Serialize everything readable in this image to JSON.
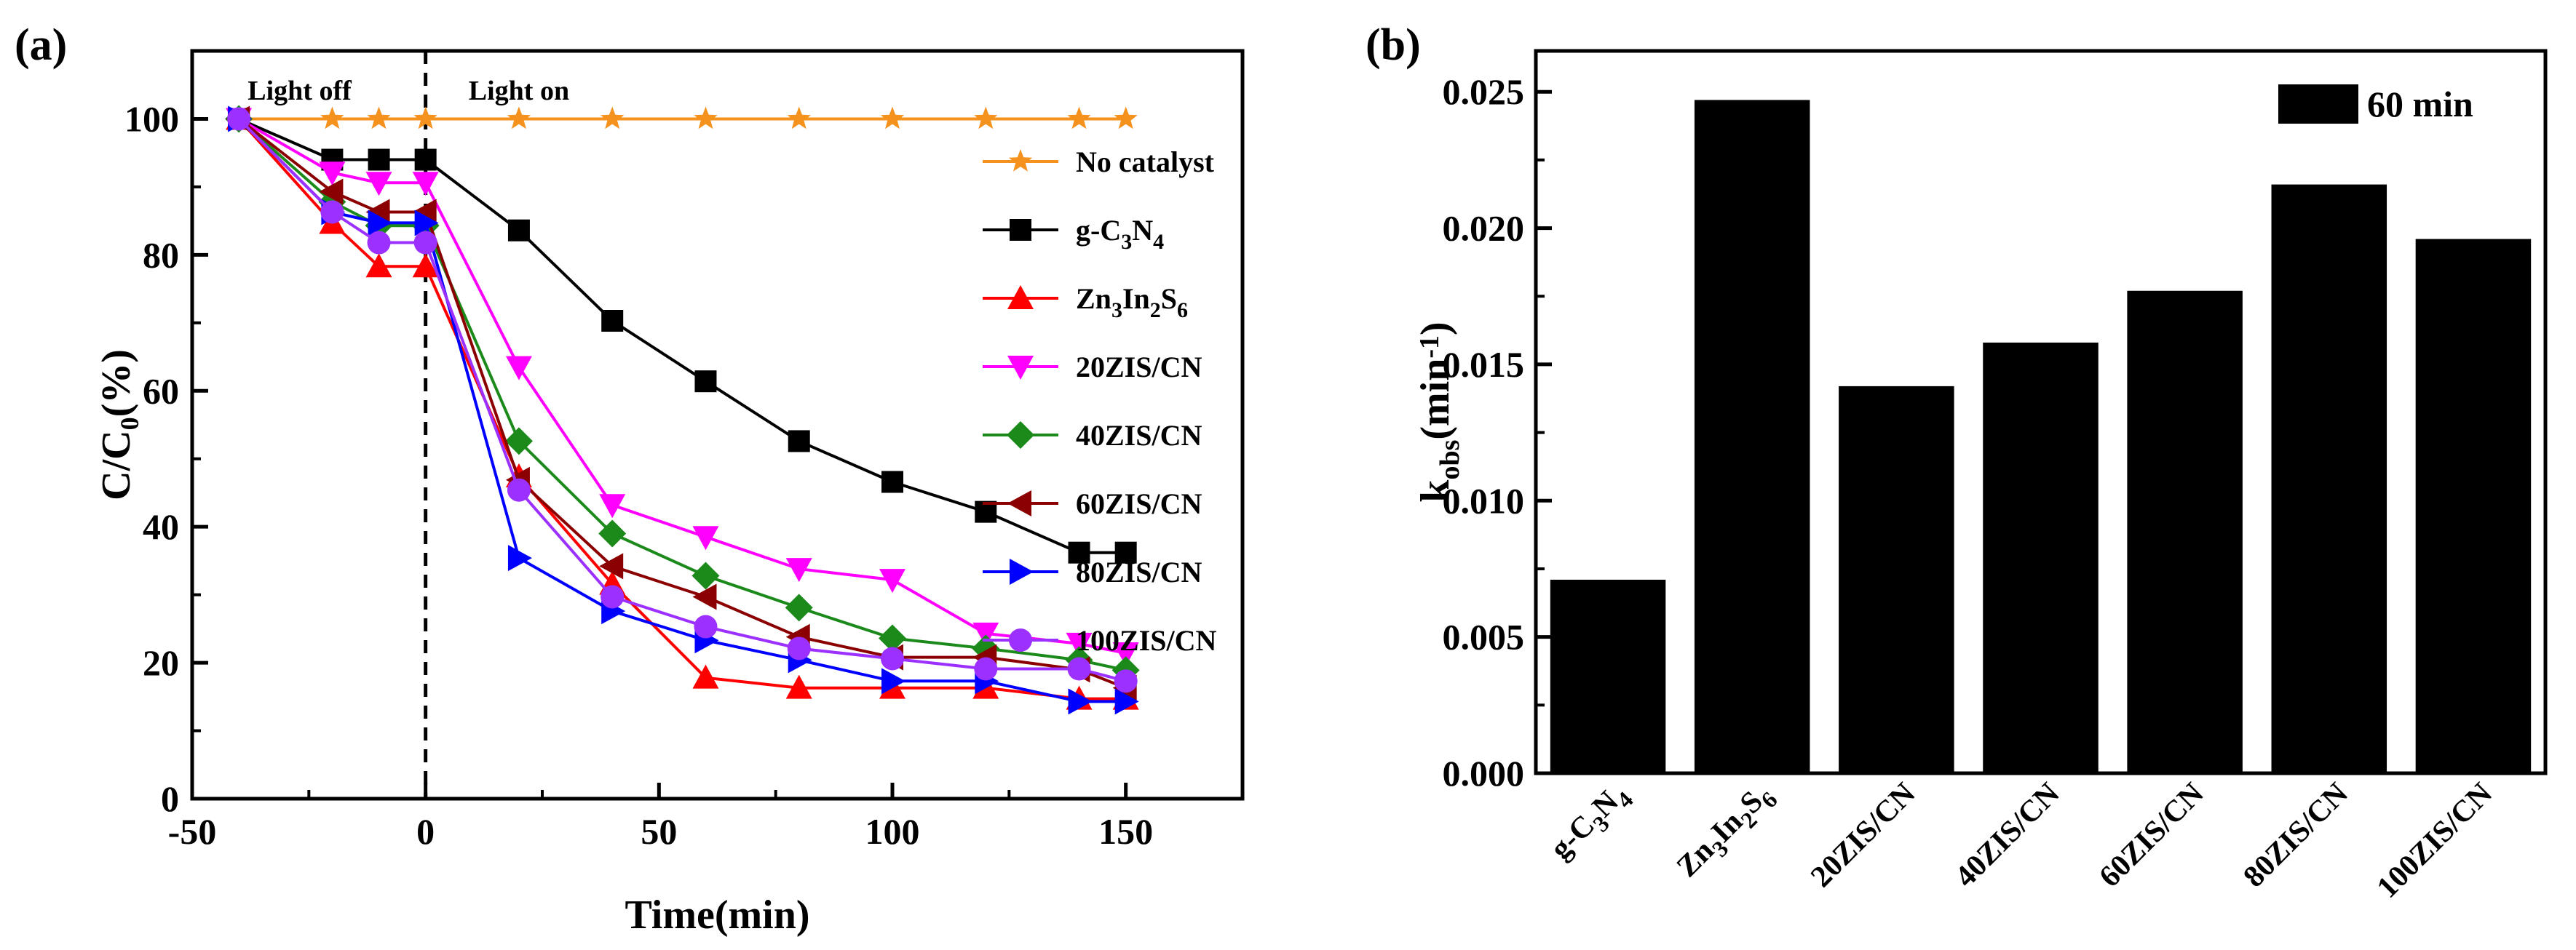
{
  "chart_data": [
    {
      "panel": "(a)",
      "type": "line",
      "xlabel": "Time(min)",
      "ylabel": "C/C0(%)",
      "ylabel_parts": {
        "main": "C/C",
        "sub": "0",
        "unit": "(%)"
      },
      "xlim": [
        -50,
        175
      ],
      "ylim": [
        0,
        110
      ],
      "xticks": [
        -50,
        0,
        50,
        100,
        150
      ],
      "yticks": [
        0,
        20,
        40,
        60,
        80,
        100
      ],
      "annotations": [
        "Light off",
        "Light on"
      ],
      "divider_x": 0,
      "legend_position": "right",
      "series": [
        {
          "name": "No catalyst",
          "name_parts": [
            [
              "No catalyst",
              ""
            ]
          ],
          "color": "#F5921E",
          "marker": "star",
          "x": [
            -40,
            -20,
            -10,
            0,
            20,
            40,
            60,
            80,
            100,
            120,
            140,
            150
          ],
          "y": [
            100,
            100,
            100,
            100,
            100,
            100,
            100,
            100,
            100,
            100,
            100,
            100
          ]
        },
        {
          "name": "g-C3N4",
          "name_parts": [
            [
              "g-C",
              ""
            ],
            [
              "3",
              "sub"
            ],
            [
              "N",
              ""
            ],
            [
              "4",
              "sub"
            ]
          ],
          "color": "#000000",
          "marker": "square",
          "x": [
            -40,
            -20,
            -10,
            0,
            20,
            40,
            60,
            80,
            100,
            120,
            140,
            150
          ],
          "y": [
            100,
            94,
            94,
            94,
            83.6,
            70.3,
            61.4,
            52.6,
            46.6,
            42.2,
            36.2,
            36.2
          ]
        },
        {
          "name": "Zn3In2S6",
          "name_parts": [
            [
              "Zn",
              ""
            ],
            [
              "3",
              "sub"
            ],
            [
              "In",
              ""
            ],
            [
              "2",
              "sub"
            ],
            [
              "S",
              ""
            ],
            [
              "6",
              "sub"
            ]
          ],
          "color": "#FF0000",
          "marker": "triangle-up",
          "x": [
            -40,
            -20,
            -10,
            0,
            20,
            40,
            60,
            80,
            100,
            120,
            140,
            150
          ],
          "y": [
            100,
            84.7,
            78.3,
            78.3,
            47.4,
            31.6,
            17.8,
            16.3,
            16.3,
            16.3,
            14.7,
            14.7
          ]
        },
        {
          "name": "20ZIS/CN",
          "name_parts": [
            [
              "20ZIS/CN",
              ""
            ]
          ],
          "color": "#FF00FF",
          "marker": "triangle-down",
          "x": [
            -40,
            -20,
            -10,
            0,
            20,
            40,
            60,
            80,
            100,
            120,
            140,
            150
          ],
          "y": [
            100,
            92.1,
            90.6,
            90.6,
            63.5,
            43.2,
            38.5,
            33.8,
            32.2,
            24.3,
            22.8,
            21.4
          ]
        },
        {
          "name": "40ZIS/CN",
          "name_parts": [
            [
              "40ZIS/CN",
              ""
            ]
          ],
          "color": "#1B8A1B",
          "marker": "diamond",
          "x": [
            -40,
            -20,
            -10,
            0,
            20,
            40,
            60,
            80,
            100,
            120,
            140,
            150
          ],
          "y": [
            100,
            87.8,
            84.3,
            84.3,
            52.6,
            39.0,
            32.8,
            28.1,
            23.6,
            22.1,
            20.4,
            18.9
          ]
        },
        {
          "name": "60ZIS/CN",
          "name_parts": [
            [
              "60ZIS/CN",
              ""
            ]
          ],
          "color": "#8B0000",
          "marker": "triangle-left",
          "x": [
            -40,
            -20,
            -10,
            0,
            20,
            40,
            60,
            80,
            100,
            120,
            140,
            150
          ],
          "y": [
            100,
            89.3,
            86.3,
            86.3,
            46.9,
            34.2,
            29.7,
            23.8,
            20.8,
            20.8,
            19.0,
            16.3
          ]
        },
        {
          "name": "80ZIS/CN",
          "name_parts": [
            [
              "80ZIS/CN",
              ""
            ]
          ],
          "color": "#0000FF",
          "marker": "triangle-right",
          "x": [
            -40,
            -20,
            -10,
            0,
            20,
            40,
            60,
            80,
            100,
            120,
            140,
            150
          ],
          "y": [
            100,
            86.3,
            84.7,
            84.7,
            35.4,
            27.6,
            23.3,
            20.4,
            17.3,
            17.3,
            14.3,
            14.3
          ]
        },
        {
          "name": "100ZIS/CN",
          "name_parts": [
            [
              "100ZIS/CN",
              ""
            ]
          ],
          "color": "#9B30FF",
          "marker": "circle",
          "x": [
            -40,
            -20,
            -10,
            0,
            20,
            40,
            60,
            80,
            100,
            120,
            140,
            150
          ],
          "y": [
            100,
            86.3,
            81.8,
            81.8,
            45.4,
            29.7,
            25.3,
            22.1,
            20.6,
            19.1,
            19.1,
            17.3
          ]
        }
      ]
    },
    {
      "panel": "(b)",
      "type": "bar",
      "ylabel": "kobs(min-1)",
      "ylabel_parts": {
        "main": "k",
        "sub": "obs",
        "unit_main": "(min",
        "sup": "-1",
        "close": ")"
      },
      "ylim": [
        0,
        0.0265
      ],
      "yticks": [
        "0.000",
        "0.005",
        "0.010",
        "0.015",
        "0.020",
        "0.025"
      ],
      "legend": "60 min",
      "legend_position": "top-right",
      "bar_color": "#000000",
      "categories": [
        "g-C3N4",
        "Zn3In2S6",
        "20ZIS/CN",
        "40ZIS/CN",
        "60ZIS/CN",
        "80ZIS/CN",
        "100ZIS/CN"
      ],
      "category_parts": [
        [
          [
            "g-C",
            ""
          ],
          [
            "3",
            "sub"
          ],
          [
            "N",
            ""
          ],
          [
            "4",
            "sub"
          ]
        ],
        [
          [
            "Zn",
            ""
          ],
          [
            "3",
            "sub"
          ],
          [
            "In",
            ""
          ],
          [
            "2",
            "sub"
          ],
          [
            "S",
            ""
          ],
          [
            "6",
            "sub"
          ]
        ],
        [
          [
            "20ZIS/CN",
            ""
          ]
        ],
        [
          [
            "40ZIS/CN",
            ""
          ]
        ],
        [
          [
            "60ZIS/CN",
            ""
          ]
        ],
        [
          [
            "80ZIS/CN",
            ""
          ]
        ],
        [
          [
            "100ZIS/CN",
            ""
          ]
        ]
      ],
      "values": [
        0.0071,
        0.0247,
        0.0142,
        0.0158,
        0.0177,
        0.0216,
        0.0196
      ]
    }
  ]
}
